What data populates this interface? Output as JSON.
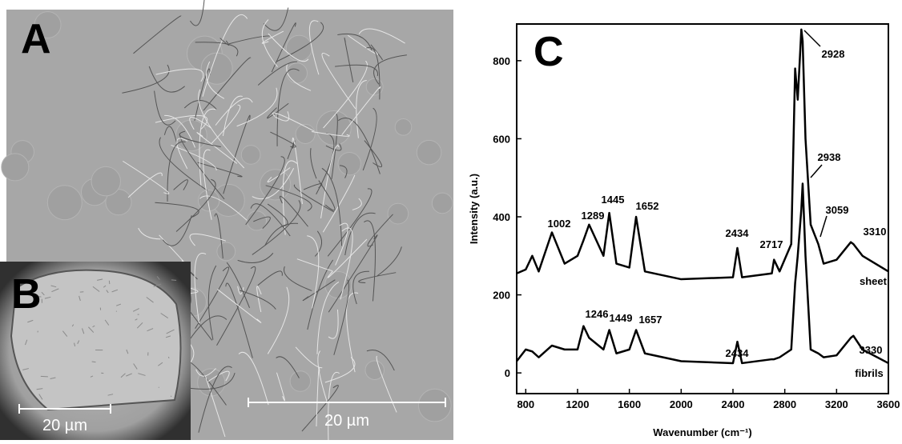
{
  "panels": {
    "a": {
      "label": "A",
      "scale_bar": "20 µm"
    },
    "b": {
      "label": "B",
      "scale_bar": "20 µm"
    }
  },
  "chart_data": {
    "type": "line",
    "panel_label": "C",
    "x_label": "Wavenumber (cm⁻¹)",
    "y_label": "Intensity (a.u.)",
    "x": [
      730,
      800,
      850,
      900,
      1002,
      1100,
      1200,
      1246,
      1289,
      1400,
      1445,
      1500,
      1600,
      1652,
      1720,
      2000,
      2400,
      2434,
      2470,
      2700,
      2717,
      2760,
      2850,
      2880,
      2900,
      2928,
      2938,
      2960,
      3000,
      3059,
      3100,
      3200,
      3310,
      3330,
      3400,
      3600
    ],
    "series": [
      {
        "name": "sheet",
        "color": "#000000",
        "values": [
          255,
          265,
          300,
          260,
          360,
          280,
          300,
          340,
          380,
          300,
          410,
          280,
          270,
          400,
          260,
          240,
          245,
          320,
          245,
          255,
          290,
          260,
          330,
          780,
          700,
          880,
          850,
          600,
          380,
          330,
          280,
          290,
          335,
          330,
          300,
          260
        ]
      },
      {
        "name": "fibrils",
        "color": "#000000",
        "values": [
          30,
          60,
          55,
          40,
          70,
          60,
          60,
          120,
          90,
          60,
          110,
          50,
          60,
          110,
          50,
          30,
          25,
          80,
          25,
          35,
          35,
          40,
          60,
          230,
          300,
          420,
          485,
          300,
          60,
          50,
          40,
          45,
          90,
          95,
          60,
          25
        ]
      }
    ],
    "annotations": [
      "2928",
      "2938",
      "3059",
      "3310",
      "1002",
      "1289",
      "1445",
      "1652",
      "2434",
      "2717",
      "1246",
      "1449",
      "1657",
      "2434",
      "3330"
    ],
    "xlim": [
      730,
      3600
    ],
    "xticks": [
      800,
      1200,
      1600,
      2000,
      2400,
      2800,
      3200,
      3600
    ],
    "ylim": [
      -53,
      894
    ],
    "yticks": [
      0,
      200,
      400,
      600,
      800
    ]
  }
}
